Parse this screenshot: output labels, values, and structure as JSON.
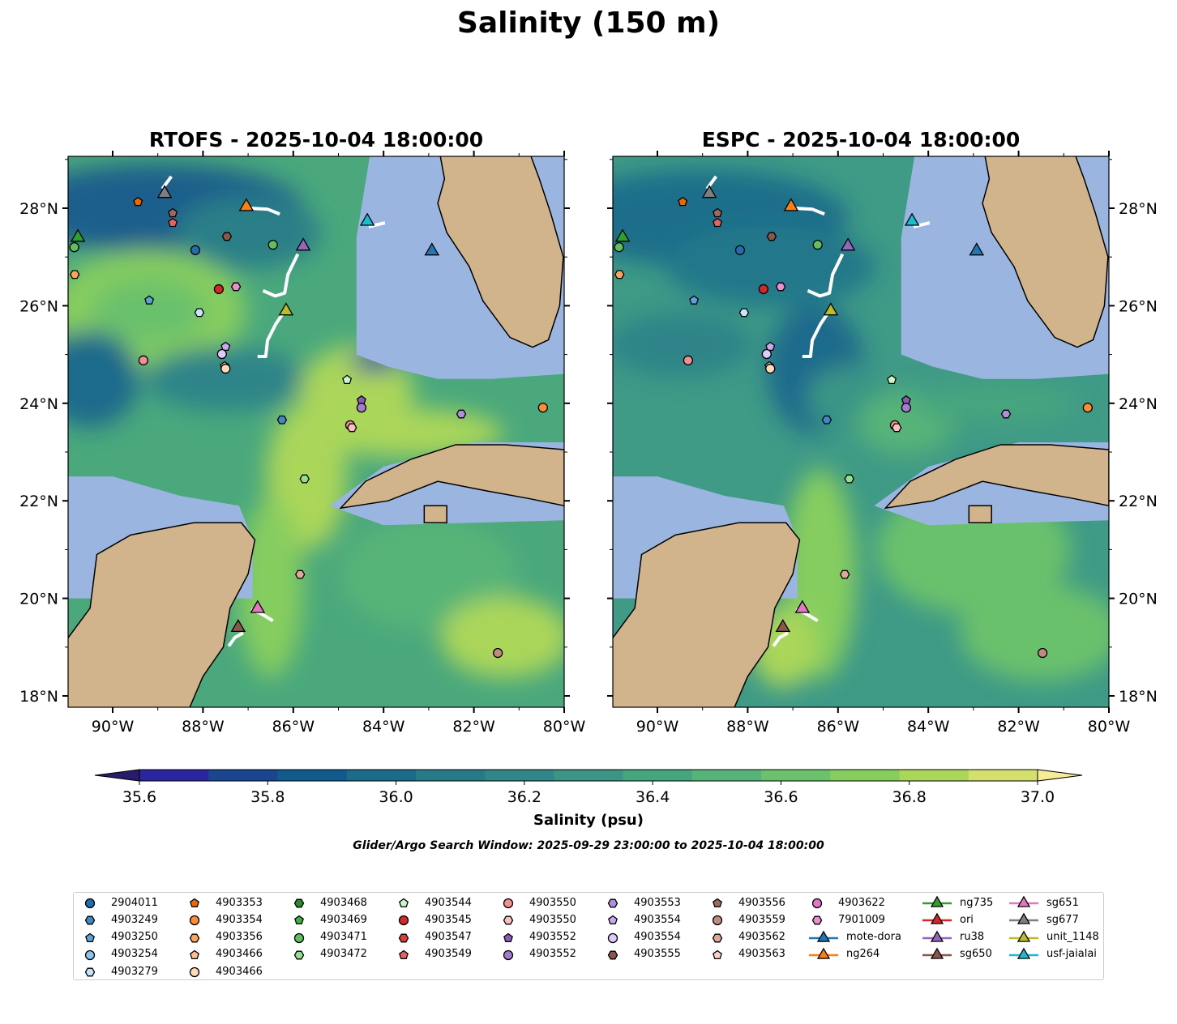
{
  "title": "Salinity (150 m)",
  "maps": [
    {
      "title": "RTOFS - 2025-10-04 18:00:00"
    },
    {
      "title": "ESPC - 2025-10-04 18:00:00"
    }
  ],
  "colorbar": {
    "label": "Salinity (psu)",
    "ticks": [
      "35.6",
      "35.8",
      "36.0",
      "36.2",
      "36.4",
      "36.6",
      "36.8",
      "37.0"
    ],
    "range": [
      35.6,
      37.0
    ],
    "extend": "both",
    "colors": [
      "#2a1a6c",
      "#2b24a0",
      "#1a4690",
      "#105a8c",
      "#1b6c8a",
      "#277b88",
      "#308688",
      "#3b9585",
      "#46a57e",
      "#56b478",
      "#6bc16c",
      "#86cd5e",
      "#aad65a",
      "#d3e06d",
      "#f7eb97"
    ]
  },
  "search_window": "Glider/Argo Search Window: 2025-09-29 23:00:00 to 2025-10-04 18:00:00",
  "chart_data": {
    "type": "map",
    "xlabel_ticks": [
      "90°W",
      "88°W",
      "86°W",
      "84°W",
      "82°W",
      "80°W"
    ],
    "ylabel_ticks": [
      "18°N",
      "20°N",
      "22°N",
      "24°N",
      "26°N",
      "28°N"
    ],
    "lon_range": [
      -91.1,
      -80.0
    ],
    "lat_range": [
      17.75,
      29.05
    ],
    "legend": [
      {
        "name": "2904011",
        "shape": "circle",
        "color": "#1f6fb0"
      },
      {
        "name": "4903249",
        "shape": "hex",
        "color": "#3a8cc6"
      },
      {
        "name": "4903250",
        "shape": "pent",
        "color": "#5aa4d8"
      },
      {
        "name": "4903254",
        "shape": "circle",
        "color": "#8cc4ec"
      },
      {
        "name": "4903279",
        "shape": "hex",
        "color": "#c6e5fb"
      },
      {
        "name": "4903353",
        "shape": "pent",
        "color": "#e86a00"
      },
      {
        "name": "4903354",
        "shape": "circle",
        "color": "#ff8c2e"
      },
      {
        "name": "4903356",
        "shape": "hex",
        "color": "#ffa55a"
      },
      {
        "name": "4903466",
        "shape": "pent",
        "color": "#ffc090"
      },
      {
        "name": "4903466",
        "shape": "circle",
        "color": "#ffdab8"
      },
      {
        "name": "4903468",
        "shape": "hex",
        "color": "#2a8a2a"
      },
      {
        "name": "4903469",
        "shape": "pent",
        "color": "#3cb043"
      },
      {
        "name": "4903471",
        "shape": "circle",
        "color": "#60c060"
      },
      {
        "name": "4903472",
        "shape": "hex",
        "color": "#90e090"
      },
      {
        "name": "4903544",
        "shape": "pent",
        "color": "#c8f8c8"
      },
      {
        "name": "4903545",
        "shape": "circle",
        "color": "#d62728"
      },
      {
        "name": "4903547",
        "shape": "hex",
        "color": "#dc3c3c"
      },
      {
        "name": "4903549",
        "shape": "pent",
        "color": "#e86060"
      },
      {
        "name": "4903550",
        "shape": "circle",
        "color": "#f09090"
      },
      {
        "name": "4903550",
        "shape": "hex",
        "color": "#fcc0c0"
      },
      {
        "name": "4903552",
        "shape": "pent",
        "color": "#8a5cb8"
      },
      {
        "name": "4903552",
        "shape": "circle",
        "color": "#a57ccf"
      },
      {
        "name": "4903553",
        "shape": "hex",
        "color": "#b08ee0"
      },
      {
        "name": "4903554",
        "shape": "pent",
        "color": "#c8a8f0"
      },
      {
        "name": "4903554",
        "shape": "circle",
        "color": "#e0ccfa"
      },
      {
        "name": "4903555",
        "shape": "hex",
        "color": "#8c564b"
      },
      {
        "name": "4903556",
        "shape": "pent",
        "color": "#9e6a5e"
      },
      {
        "name": "4903559",
        "shape": "circle",
        "color": "#c08a7c"
      },
      {
        "name": "4903562",
        "shape": "hex",
        "color": "#e0a898"
      },
      {
        "name": "4903563",
        "shape": "pent",
        "color": "#fcd0c4"
      },
      {
        "name": "4903622",
        "shape": "circle",
        "color": "#e377c2"
      },
      {
        "name": "7901009",
        "shape": "hex",
        "color": "#ea8ed0"
      },
      {
        "name": "mote-dora",
        "shape": "tri",
        "color": "#1f77b4"
      },
      {
        "name": "ng264",
        "shape": "tri",
        "color": "#ff7f0e"
      },
      {
        "name": "ng735",
        "shape": "tri",
        "color": "#2ca02c"
      },
      {
        "name": "ori",
        "shape": "tri",
        "color": "#d62728"
      },
      {
        "name": "ru38",
        "shape": "tri",
        "color": "#9467bd"
      },
      {
        "name": "sg650",
        "shape": "tri",
        "color": "#8c564b"
      },
      {
        "name": "sg651",
        "shape": "tri",
        "color": "#e377c2"
      },
      {
        "name": "sg677",
        "shape": "tri",
        "color": "#7f7f7f"
      },
      {
        "name": "unit_1148",
        "shape": "tri",
        "color": "#bcbd22"
      },
      {
        "name": "usf-jaialai",
        "shape": "tri",
        "color": "#17becf"
      }
    ],
    "markers": [
      [
        39,
        -88.85,
        28.3
      ],
      [
        5,
        -89.44,
        28.13
      ],
      [
        33,
        -87.04,
        28.03
      ],
      [
        26,
        -88.67,
        27.9
      ],
      [
        17,
        -88.67,
        27.7
      ],
      [
        41,
        -84.36,
        27.73
      ],
      [
        34,
        -90.77,
        27.4
      ],
      [
        12,
        -90.85,
        27.2
      ],
      [
        25,
        -87.47,
        27.42
      ],
      [
        12,
        -86.45,
        27.25
      ],
      [
        36,
        -85.78,
        27.22
      ],
      [
        32,
        -82.93,
        27.12
      ],
      [
        0,
        -88.17,
        27.14
      ],
      [
        7,
        -90.84,
        26.64
      ],
      [
        15,
        -87.65,
        26.34
      ],
      [
        31,
        -87.27,
        26.39
      ],
      [
        40,
        -86.16,
        25.89
      ],
      [
        2,
        -89.19,
        26.11
      ],
      [
        4,
        -88.08,
        25.86
      ],
      [
        23,
        -87.5,
        25.16
      ],
      [
        24,
        -87.58,
        25.01
      ],
      [
        8,
        -87.52,
        24.76
      ],
      [
        9,
        -87.5,
        24.71
      ],
      [
        18,
        -89.32,
        24.88
      ],
      [
        14,
        -84.81,
        24.48
      ],
      [
        20,
        -84.49,
        24.06
      ],
      [
        21,
        -84.49,
        23.91
      ],
      [
        18,
        -84.74,
        23.55
      ],
      [
        19,
        -84.7,
        23.5
      ],
      [
        1,
        -86.25,
        23.66
      ],
      [
        22,
        -82.28,
        23.78
      ],
      [
        6,
        -80.47,
        23.91
      ],
      [
        13,
        -85.75,
        22.45
      ],
      [
        28,
        -85.85,
        20.49
      ],
      [
        38,
        -86.79,
        19.79
      ],
      [
        37,
        -87.22,
        19.4
      ],
      [
        27,
        -81.47,
        18.88
      ]
    ],
    "tracks": [
      [
        [
          -88.9,
          28.4
        ],
        [
          -88.7,
          28.65
        ]
      ],
      [
        [
          -86.98,
          28.0
        ],
        [
          -86.57,
          27.98
        ],
        [
          -86.3,
          27.88
        ]
      ],
      [
        [
          -84.33,
          27.62
        ],
        [
          -83.97,
          27.7
        ]
      ],
      [
        [
          -86.67,
          26.31
        ],
        [
          -86.4,
          26.2
        ],
        [
          -86.19,
          26.26
        ],
        [
          -86.12,
          26.64
        ],
        [
          -85.9,
          27.06
        ]
      ],
      [
        [
          -86.79,
          24.96
        ],
        [
          -86.61,
          24.96
        ],
        [
          -86.57,
          25.29
        ],
        [
          -86.39,
          25.62
        ],
        [
          -86.21,
          25.87
        ]
      ],
      [
        [
          -86.93,
          19.77
        ],
        [
          -86.72,
          19.69
        ],
        [
          -86.45,
          19.54
        ]
      ],
      [
        [
          -87.43,
          19.02
        ],
        [
          -87.29,
          19.2
        ],
        [
          -87.11,
          19.29
        ]
      ]
    ]
  }
}
